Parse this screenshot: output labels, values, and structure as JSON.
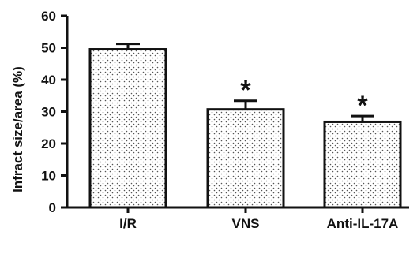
{
  "chart_data": {
    "type": "bar",
    "title": "",
    "xlabel": "",
    "ylabel": "Infract size/area (%)",
    "ylim": [
      0,
      60
    ],
    "yticks": [
      0,
      10,
      20,
      30,
      40,
      50,
      60
    ],
    "categories": [
      "I/R",
      "VNS",
      "Anti-IL-17A"
    ],
    "values": [
      49.5,
      30.7,
      26.8
    ],
    "error_upper": [
      51.2,
      33.4,
      28.6
    ],
    "annotations": [
      "",
      "*",
      "*"
    ],
    "grid": false,
    "legend": "none",
    "bar_fill": "dotted white",
    "colors": {
      "stroke": "#111111",
      "fill": "#ffffff",
      "dots": "#555555"
    }
  }
}
